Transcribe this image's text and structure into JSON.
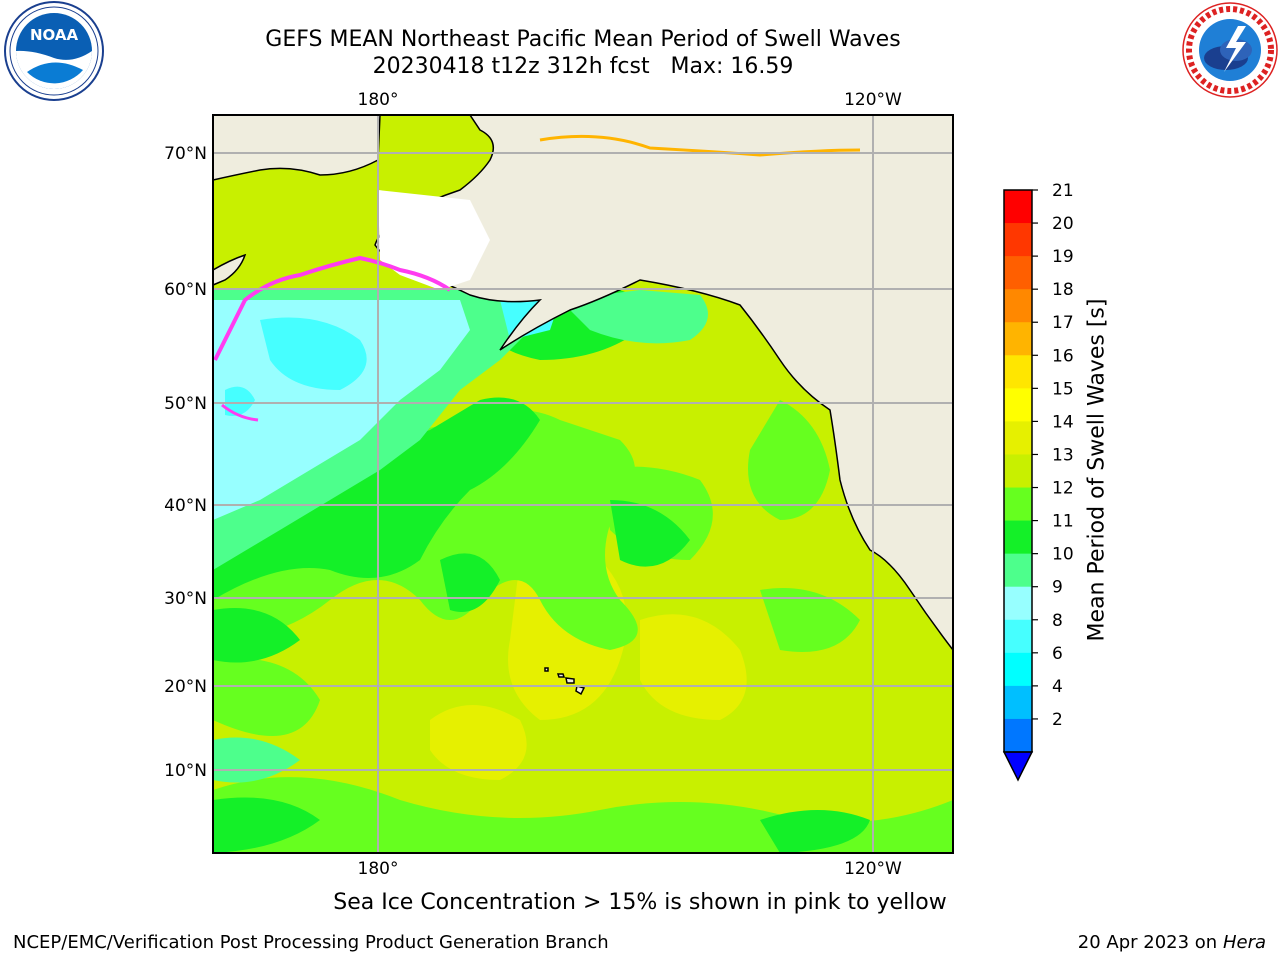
{
  "header": {
    "title_line1": "GEFS MEAN Northeast Pacific Mean Period of Swell Waves",
    "title_line2": "20230418 t12z 312h fcst   Max: 16.59"
  },
  "logos": {
    "left": "noaa-logo",
    "right": "national-weather-service-logo"
  },
  "map": {
    "top_lon_labels": [
      "180°",
      "120°W"
    ],
    "bottom_lon_labels": [
      "180°",
      "120°W"
    ],
    "lat_labels": [
      "70°N",
      "60°N",
      "50°N",
      "40°N",
      "30°N",
      "20°N",
      "10°N"
    ],
    "gridlines": true,
    "land_color": "#efedde",
    "ocean_palette": {
      "cyan_light": "#97ffff",
      "cyan": "#46ffff",
      "green_light": "#4dff8c",
      "green": "#14f028",
      "green_yellow": "#66ff1f",
      "yellow_green": "#c8f000",
      "yellow": "#e6f000",
      "ice_pink": "#ff3cf0"
    }
  },
  "colorbar": {
    "title": "Mean Period of Swell Waves [s]",
    "ticks": [
      "21",
      "20",
      "19",
      "18",
      "17",
      "16",
      "15",
      "14",
      "13",
      "12",
      "11",
      "10",
      "9",
      "8",
      "6",
      "4",
      "2"
    ],
    "colors": [
      "#ff0000",
      "#ff3700",
      "#ff5f00",
      "#ff8800",
      "#ffb400",
      "#ffe600",
      "#ffff00",
      "#e6f000",
      "#c8f000",
      "#66ff1f",
      "#14f028",
      "#4dff8c",
      "#97ffff",
      "#46ffff",
      "#00ffff",
      "#00bfff",
      "#0077ff"
    ],
    "extend_color": "#0000ff"
  },
  "caption": "Sea Ice Concentration > 15% is shown in pink to yellow",
  "footer": {
    "credit": "NCEP/EMC/Verification Post Processing Product Generation Branch",
    "date": "20 Apr 2023 on ",
    "machine": "Hera"
  }
}
